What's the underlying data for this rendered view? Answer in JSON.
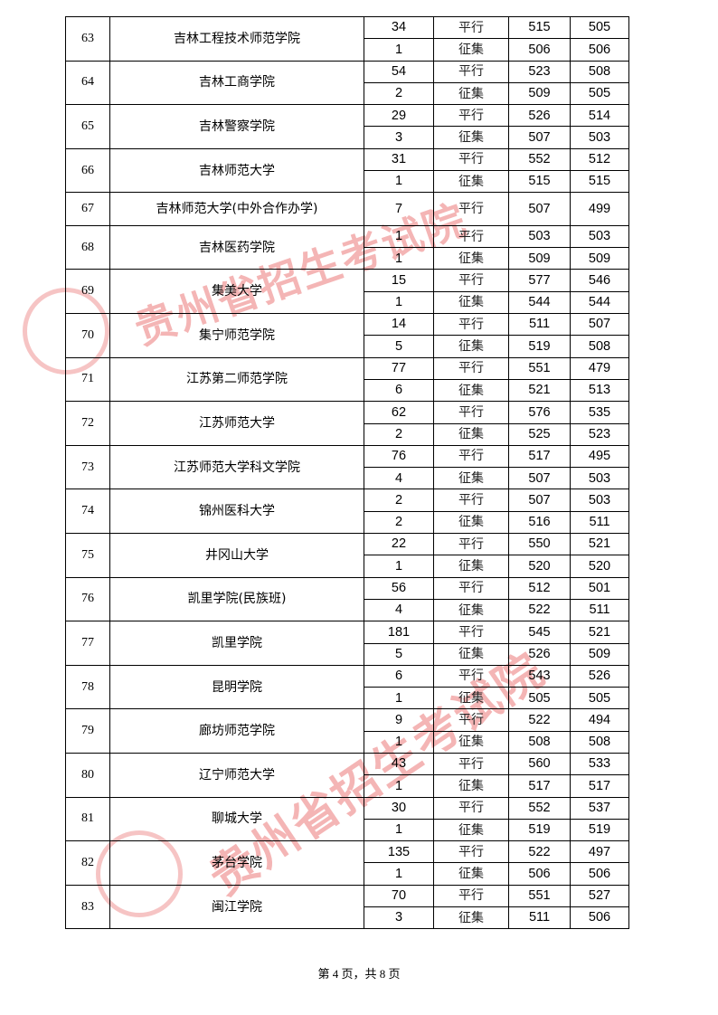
{
  "watermark_text": "贵州省招生考试院",
  "watermark_color": "#e03c3c",
  "rows": [
    {
      "no": "63",
      "school": "吉林工程技术师范学院",
      "entries": [
        [
          "34",
          "平行",
          "515",
          "505"
        ],
        [
          "1",
          "征集",
          "506",
          "506"
        ]
      ]
    },
    {
      "no": "64",
      "school": "吉林工商学院",
      "entries": [
        [
          "54",
          "平行",
          "523",
          "508"
        ],
        [
          "2",
          "征集",
          "509",
          "505"
        ]
      ]
    },
    {
      "no": "65",
      "school": "吉林警察学院",
      "entries": [
        [
          "29",
          "平行",
          "526",
          "514"
        ],
        [
          "3",
          "征集",
          "507",
          "503"
        ]
      ]
    },
    {
      "no": "66",
      "school": "吉林师范大学",
      "entries": [
        [
          "31",
          "平行",
          "552",
          "512"
        ],
        [
          "1",
          "征集",
          "515",
          "515"
        ]
      ]
    },
    {
      "no": "67",
      "school": "吉林师范大学(中外合作办学)",
      "entries": [
        [
          "7",
          "平行",
          "507",
          "499"
        ]
      ]
    },
    {
      "no": "68",
      "school": "吉林医药学院",
      "entries": [
        [
          "1",
          "平行",
          "503",
          "503"
        ],
        [
          "1",
          "征集",
          "509",
          "509"
        ]
      ]
    },
    {
      "no": "69",
      "school": "集美大学",
      "entries": [
        [
          "15",
          "平行",
          "577",
          "546"
        ],
        [
          "1",
          "征集",
          "544",
          "544"
        ]
      ]
    },
    {
      "no": "70",
      "school": "集宁师范学院",
      "entries": [
        [
          "14",
          "平行",
          "511",
          "507"
        ],
        [
          "5",
          "征集",
          "519",
          "508"
        ]
      ]
    },
    {
      "no": "71",
      "school": "江苏第二师范学院",
      "entries": [
        [
          "77",
          "平行",
          "551",
          "479"
        ],
        [
          "6",
          "征集",
          "521",
          "513"
        ]
      ]
    },
    {
      "no": "72",
      "school": "江苏师范大学",
      "entries": [
        [
          "62",
          "平行",
          "576",
          "535"
        ],
        [
          "2",
          "征集",
          "525",
          "523"
        ]
      ]
    },
    {
      "no": "73",
      "school": "江苏师范大学科文学院",
      "entries": [
        [
          "76",
          "平行",
          "517",
          "495"
        ],
        [
          "4",
          "征集",
          "507",
          "503"
        ]
      ]
    },
    {
      "no": "74",
      "school": "锦州医科大学",
      "entries": [
        [
          "2",
          "平行",
          "507",
          "503"
        ],
        [
          "2",
          "征集",
          "516",
          "511"
        ]
      ]
    },
    {
      "no": "75",
      "school": "井冈山大学",
      "entries": [
        [
          "22",
          "平行",
          "550",
          "521"
        ],
        [
          "1",
          "征集",
          "520",
          "520"
        ]
      ]
    },
    {
      "no": "76",
      "school": "凯里学院(民族班)",
      "entries": [
        [
          "56",
          "平行",
          "512",
          "501"
        ],
        [
          "4",
          "征集",
          "522",
          "511"
        ]
      ]
    },
    {
      "no": "77",
      "school": "凯里学院",
      "entries": [
        [
          "181",
          "平行",
          "545",
          "521"
        ],
        [
          "5",
          "征集",
          "526",
          "509"
        ]
      ]
    },
    {
      "no": "78",
      "school": "昆明学院",
      "entries": [
        [
          "6",
          "平行",
          "543",
          "526"
        ],
        [
          "1",
          "征集",
          "505",
          "505"
        ]
      ]
    },
    {
      "no": "79",
      "school": "廊坊师范学院",
      "entries": [
        [
          "9",
          "平行",
          "522",
          "494"
        ],
        [
          "1",
          "征集",
          "508",
          "508"
        ]
      ]
    },
    {
      "no": "80",
      "school": "辽宁师范大学",
      "entries": [
        [
          "43",
          "平行",
          "560",
          "533"
        ],
        [
          "1",
          "征集",
          "517",
          "517"
        ]
      ]
    },
    {
      "no": "81",
      "school": "聊城大学",
      "entries": [
        [
          "30",
          "平行",
          "552",
          "537"
        ],
        [
          "1",
          "征集",
          "519",
          "519"
        ]
      ]
    },
    {
      "no": "82",
      "school": "茅台学院",
      "entries": [
        [
          "135",
          "平行",
          "522",
          "497"
        ],
        [
          "1",
          "征集",
          "506",
          "506"
        ]
      ]
    },
    {
      "no": "83",
      "school": "闽江学院",
      "entries": [
        [
          "70",
          "平行",
          "551",
          "527"
        ],
        [
          "3",
          "征集",
          "511",
          "506"
        ]
      ]
    }
  ],
  "footer": "第 4 页，共 8 页"
}
